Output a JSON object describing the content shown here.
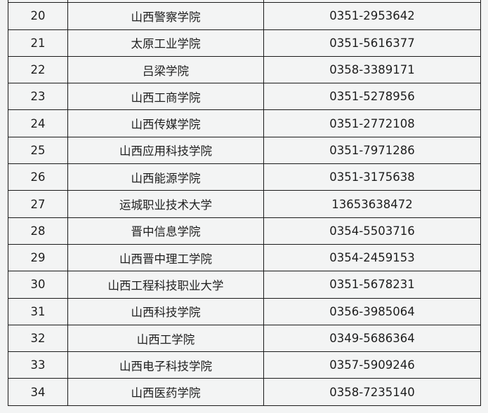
{
  "rows": [
    {
      "no": "",
      "name": "",
      "phone": ""
    },
    {
      "no": "20",
      "name": "山西警察学院",
      "phone": "0351-2953642"
    },
    {
      "no": "21",
      "name": "太原工业学院",
      "phone": "0351-5616377"
    },
    {
      "no": "22",
      "name": "吕梁学院",
      "phone": "0358-3389171"
    },
    {
      "no": "23",
      "name": "山西工商学院",
      "phone": "0351-5278956"
    },
    {
      "no": "24",
      "name": "山西传媒学院",
      "phone": "0351-2772108"
    },
    {
      "no": "25",
      "name": "山西应用科技学院",
      "phone": "0351-7971286"
    },
    {
      "no": "26",
      "name": "山西能源学院",
      "phone": "0351-3175638"
    },
    {
      "no": "27",
      "name": "运城职业技术大学",
      "phone": "13653638472"
    },
    {
      "no": "28",
      "name": "晋中信息学院",
      "phone": "0354-5503716"
    },
    {
      "no": "29",
      "name": "山西晋中理工学院",
      "phone": "0354-2459153"
    },
    {
      "no": "30",
      "name": "山西工程科技职业大学",
      "phone": "0351-5678231"
    },
    {
      "no": "31",
      "name": "山西科技学院",
      "phone": "0356-3985064"
    },
    {
      "no": "32",
      "name": "山西工学院",
      "phone": "0349-5686364"
    },
    {
      "no": "33",
      "name": "山西电子科技学院",
      "phone": "0357-5909246"
    },
    {
      "no": "34",
      "name": "山西医药学院",
      "phone": "0358-7235140"
    }
  ]
}
